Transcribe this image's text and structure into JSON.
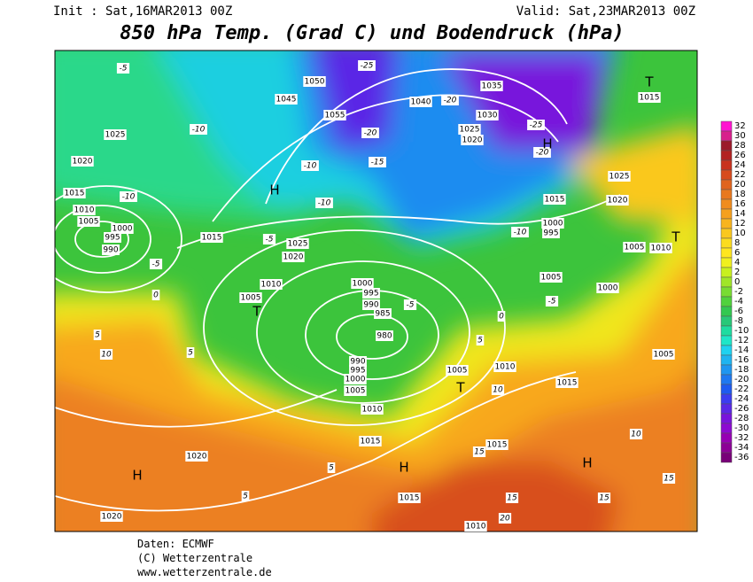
{
  "header": {
    "init": "Init : Sat,16MAR2013 00Z",
    "valid": "Valid: Sat,23MAR2013 00Z",
    "title": "850 hPa Temp. (Grad C) und Bodendruck (hPa)"
  },
  "footer": {
    "source": "Daten: ECMWF",
    "copyright": "(C) Wetterzentrale",
    "url": "www.wetterzentrale.de"
  },
  "legend": {
    "levels": [
      32,
      30,
      28,
      26,
      24,
      22,
      20,
      18,
      16,
      14,
      12,
      10,
      8,
      6,
      4,
      2,
      0,
      -2,
      -4,
      -6,
      -8,
      -10,
      -12,
      -14,
      -16,
      -18,
      -20,
      -22,
      -24,
      -26,
      -28,
      -30,
      -32,
      -34,
      -36
    ],
    "colors": [
      "#ff14d0",
      "#d8208c",
      "#9b1a2a",
      "#b22222",
      "#c8321e",
      "#d74b1e",
      "#e0641e",
      "#e8781e",
      "#f08c1e",
      "#f5a01e",
      "#f8b41e",
      "#fac81e",
      "#fcdc1e",
      "#ffe61e",
      "#f0f01e",
      "#c8f01e",
      "#a0e628",
      "#78dc32",
      "#50d23c",
      "#32c850",
      "#28c878",
      "#1edca0",
      "#1ee6c8",
      "#1ed2f0",
      "#1eb4f0",
      "#1e96f0",
      "#1e78f0",
      "#1e5af0",
      "#3c3cf0",
      "#5a28e6",
      "#7814dc",
      "#8c0ad2",
      "#9600b4",
      "#8c0096",
      "#780078"
    ]
  },
  "map": {
    "systems": [
      "H",
      "H",
      "H",
      "H",
      "H",
      "T",
      "T",
      "T",
      "T"
    ],
    "isobars": [
      "1050",
      "1055",
      "1045",
      "1040",
      "1035",
      "1030",
      "1025",
      "1020",
      "1025",
      "1020",
      "1015",
      "1010",
      "1005",
      "1000",
      "995",
      "990",
      "1015",
      "1025",
      "1020",
      "1010",
      "1005",
      "1000",
      "995",
      "990",
      "985",
      "980",
      "990",
      "995",
      "1000",
      "1005",
      "1010",
      "1015",
      "1020",
      "1020",
      "1015",
      "1015",
      "1010",
      "1005",
      "1010",
      "1015",
      "1005",
      "1000",
      "1005",
      "1000",
      "995",
      "1025",
      "1020",
      "1015",
      "1010",
      "1005",
      "1015"
    ],
    "temperatures": [
      "-25",
      "-25",
      "-20",
      "-20",
      "-20",
      "-15",
      "-10",
      "-10",
      "-10",
      "-10",
      "-10",
      "-5",
      "-5",
      "-5",
      "-5",
      "-5",
      "0",
      "0",
      "5",
      "5",
      "5",
      "5",
      "5",
      "10",
      "10",
      "10",
      "15",
      "15",
      "15",
      "15",
      "20"
    ]
  }
}
